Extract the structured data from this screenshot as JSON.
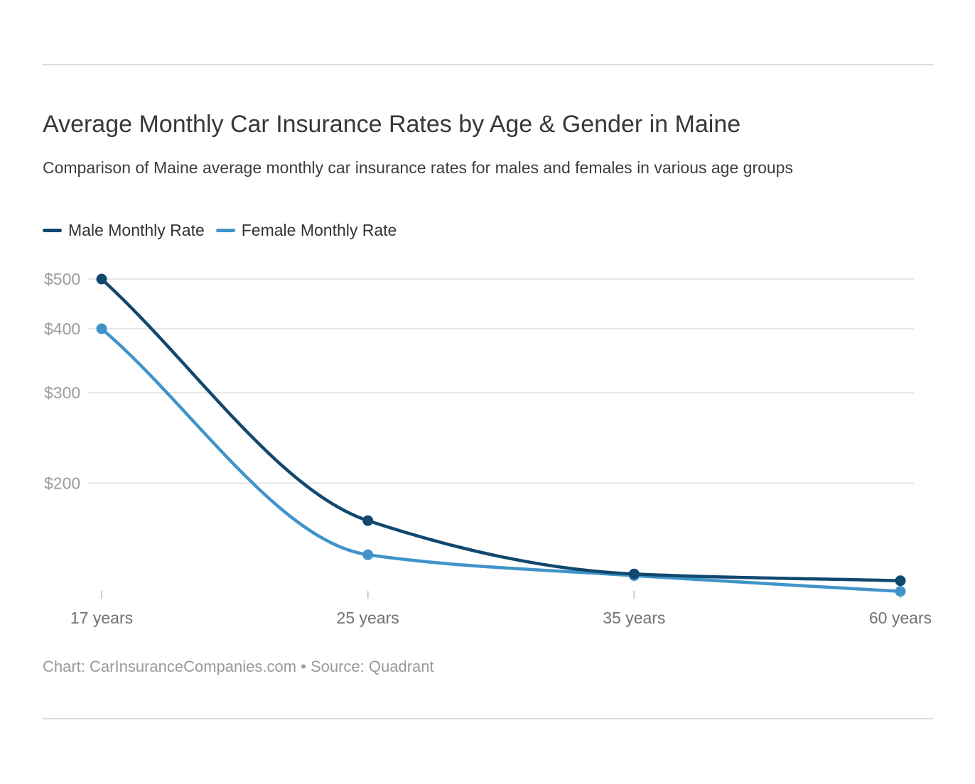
{
  "header": {
    "title": "Average Monthly Car Insurance Rates by Age & Gender in Maine",
    "subtitle": "Comparison of Maine average monthly car insurance rates for males and females in various age groups"
  },
  "chart_data": {
    "type": "line",
    "categories": [
      "17 years",
      "25 years",
      "35 years",
      "60 years"
    ],
    "series": [
      {
        "name": "Male Monthly Rate",
        "color": "#11486f",
        "values": [
          500,
          169,
          133,
          129
        ]
      },
      {
        "name": "Female Monthly Rate",
        "color": "#4094ca",
        "values": [
          400,
          145,
          132,
          123
        ]
      }
    ],
    "title": "Average Monthly Car Insurance Rates by Age & Gender in Maine",
    "xlabel": "",
    "ylabel": "",
    "y_axis": {
      "scale": "log",
      "tick_values": [
        500,
        400,
        300,
        200
      ],
      "tick_labels": [
        "$500",
        "$400",
        "$300",
        "$200"
      ],
      "ylim": [
        115,
        520
      ],
      "grid": true
    },
    "x_axis": {
      "tick_labels": [
        "17 years",
        "25 years",
        "35 years",
        "60 years"
      ]
    },
    "legend_position": "top"
  },
  "colors": {
    "gridline": "#e6e6e6",
    "y_tick_label": "#9c9c9c",
    "x_tick_label": "#717171",
    "tick_mark": "#cccccc"
  },
  "footer": {
    "text": "Chart: CarInsuranceCompanies.com • Source: Quadrant"
  }
}
